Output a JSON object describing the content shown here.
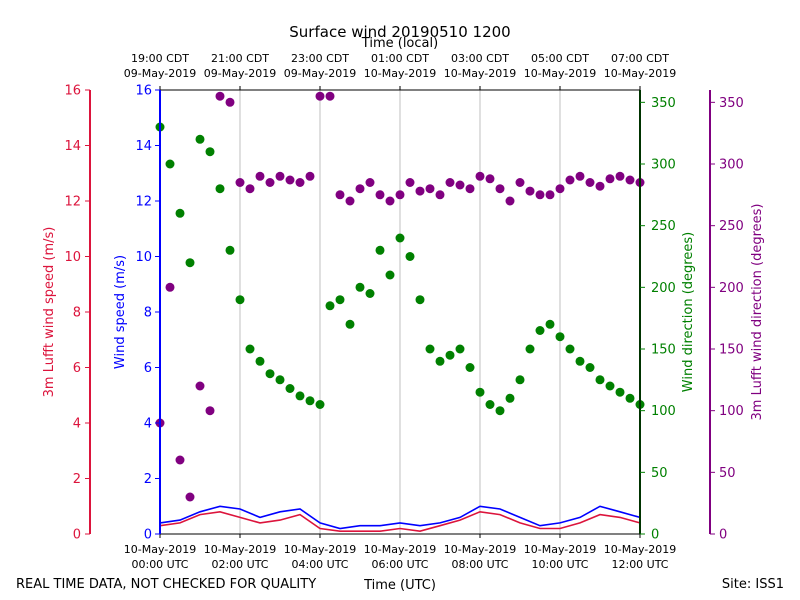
{
  "chart_data": {
    "type": "scatter",
    "title": "Surface wind 20190510 1200",
    "top_axis": {
      "label": "Time (local)",
      "ticks": [
        {
          "line1": "19:00 CDT",
          "line2": "09-May-2019"
        },
        {
          "line1": "21:00 CDT",
          "line2": "09-May-2019"
        },
        {
          "line1": "23:00 CDT",
          "line2": "09-May-2019"
        },
        {
          "line1": "01:00 CDT",
          "line2": "10-May-2019"
        },
        {
          "line1": "03:00 CDT",
          "line2": "10-May-2019"
        },
        {
          "line1": "05:00 CDT",
          "line2": "10-May-2019"
        },
        {
          "line1": "07:00 CDT",
          "line2": "10-May-2019"
        }
      ]
    },
    "bottom_axis": {
      "label": "Time (UTC)",
      "range_hours": [
        0,
        12
      ],
      "tick_hours": [
        0,
        2,
        4,
        6,
        8,
        10,
        12
      ],
      "ticks": [
        {
          "line1": "10-May-2019",
          "line2": "00:00 UTC"
        },
        {
          "line1": "10-May-2019",
          "line2": "02:00 UTC"
        },
        {
          "line1": "10-May-2019",
          "line2": "04:00 UTC"
        },
        {
          "line1": "10-May-2019",
          "line2": "06:00 UTC"
        },
        {
          "line1": "10-May-2019",
          "line2": "08:00 UTC"
        },
        {
          "line1": "10-May-2019",
          "line2": "10:00 UTC"
        },
        {
          "line1": "10-May-2019",
          "line2": "12:00 UTC"
        }
      ]
    },
    "y_axes": {
      "lufft_speed": {
        "label": "3m Lufft wind speed (m/s)",
        "range": [
          0,
          16
        ],
        "ticks": [
          0,
          2,
          4,
          6,
          8,
          10,
          12,
          14,
          16
        ],
        "color": "#dc143c"
      },
      "speed": {
        "label": "Wind speed (m/s)",
        "range": [
          0,
          16
        ],
        "ticks": [
          0,
          2,
          4,
          6,
          8,
          10,
          12,
          14,
          16
        ],
        "color": "#0000ff"
      },
      "direction": {
        "label": "Wind direction (degrees)",
        "range": [
          0,
          360
        ],
        "ticks": [
          0,
          50,
          100,
          150,
          200,
          250,
          300,
          350
        ],
        "color": "#008000"
      },
      "lufft_direction": {
        "label": "3m Lufft wind direction (degrees)",
        "range": [
          0,
          360
        ],
        "ticks": [
          0,
          50,
          100,
          150,
          200,
          250,
          300,
          350
        ],
        "color": "#800080"
      }
    },
    "series": [
      {
        "name": "Wind speed",
        "kind": "line",
        "axis": "speed",
        "color": "#0000ff",
        "x": [
          0,
          0.5,
          1,
          1.5,
          2,
          2.5,
          3,
          3.5,
          4,
          4.5,
          5,
          5.5,
          6,
          6.5,
          7,
          7.5,
          8,
          8.5,
          9,
          9.5,
          10,
          10.5,
          11,
          11.5,
          12
        ],
        "values": [
          0.4,
          0.5,
          0.8,
          1.0,
          0.9,
          0.6,
          0.8,
          0.9,
          0.4,
          0.2,
          0.3,
          0.3,
          0.4,
          0.3,
          0.4,
          0.6,
          1.0,
          0.9,
          0.6,
          0.3,
          0.4,
          0.6,
          1.0,
          0.8,
          0.6
        ]
      },
      {
        "name": "3m Lufft wind speed",
        "kind": "line",
        "axis": "lufft_speed",
        "color": "#dc143c",
        "x": [
          0,
          0.5,
          1,
          1.5,
          2,
          2.5,
          3,
          3.5,
          4,
          4.5,
          5,
          5.5,
          6,
          6.5,
          7,
          7.5,
          8,
          8.5,
          9,
          9.5,
          10,
          10.5,
          11,
          11.5,
          12
        ],
        "values": [
          0.3,
          0.4,
          0.7,
          0.8,
          0.6,
          0.4,
          0.5,
          0.7,
          0.2,
          0.1,
          0.1,
          0.1,
          0.2,
          0.1,
          0.3,
          0.5,
          0.8,
          0.7,
          0.4,
          0.2,
          0.2,
          0.4,
          0.7,
          0.6,
          0.4
        ]
      },
      {
        "name": "Wind direction",
        "kind": "scatter",
        "axis": "direction",
        "color": "#008000",
        "x": [
          0,
          0.25,
          0.5,
          0.75,
          1,
          1.25,
          1.5,
          1.75,
          2,
          2.25,
          2.5,
          2.75,
          3,
          3.25,
          3.5,
          3.75,
          4,
          4.25,
          4.5,
          4.75,
          5,
          5.25,
          5.5,
          5.75,
          6,
          6.25,
          6.5,
          6.75,
          7,
          7.25,
          7.5,
          7.75,
          8,
          8.25,
          8.5,
          8.75,
          9,
          9.25,
          9.5,
          9.75,
          10,
          10.25,
          10.5,
          10.75,
          11,
          11.25,
          11.5,
          11.75,
          12
        ],
        "values": [
          330,
          300,
          260,
          220,
          320,
          310,
          280,
          230,
          190,
          150,
          140,
          130,
          125,
          118,
          112,
          108,
          105,
          185,
          190,
          170,
          200,
          195,
          230,
          210,
          240,
          225,
          190,
          150,
          140,
          145,
          150,
          135,
          115,
          105,
          100,
          110,
          125,
          150,
          165,
          170,
          160,
          150,
          140,
          135,
          125,
          120,
          115,
          110,
          105
        ]
      },
      {
        "name": "3m Lufft wind direction",
        "kind": "scatter",
        "axis": "lufft_direction",
        "color": "#800080",
        "x": [
          0,
          0.25,
          0.5,
          0.75,
          1,
          1.25,
          1.5,
          1.75,
          2,
          2.25,
          2.5,
          2.75,
          3,
          3.25,
          3.5,
          3.75,
          4,
          4.25,
          4.5,
          4.75,
          5,
          5.25,
          5.5,
          5.75,
          6,
          6.25,
          6.5,
          6.75,
          7,
          7.25,
          7.5,
          7.75,
          8,
          8.25,
          8.5,
          8.75,
          9,
          9.25,
          9.5,
          9.75,
          10,
          10.25,
          10.5,
          10.75,
          11,
          11.25,
          11.5,
          11.75,
          12
        ],
        "values": [
          90,
          200,
          60,
          30,
          120,
          100,
          355,
          350,
          285,
          280,
          290,
          285,
          290,
          287,
          285,
          290,
          355,
          355,
          275,
          270,
          280,
          285,
          275,
          270,
          275,
          285,
          278,
          280,
          275,
          285,
          283,
          280,
          290,
          288,
          280,
          270,
          285,
          278,
          275,
          275,
          280,
          287,
          290,
          285,
          282,
          288,
          290,
          287,
          285
        ]
      }
    ]
  },
  "footer": {
    "note": "REAL TIME DATA, NOT CHECKED FOR QUALITY",
    "site": "Site: ISS1"
  }
}
